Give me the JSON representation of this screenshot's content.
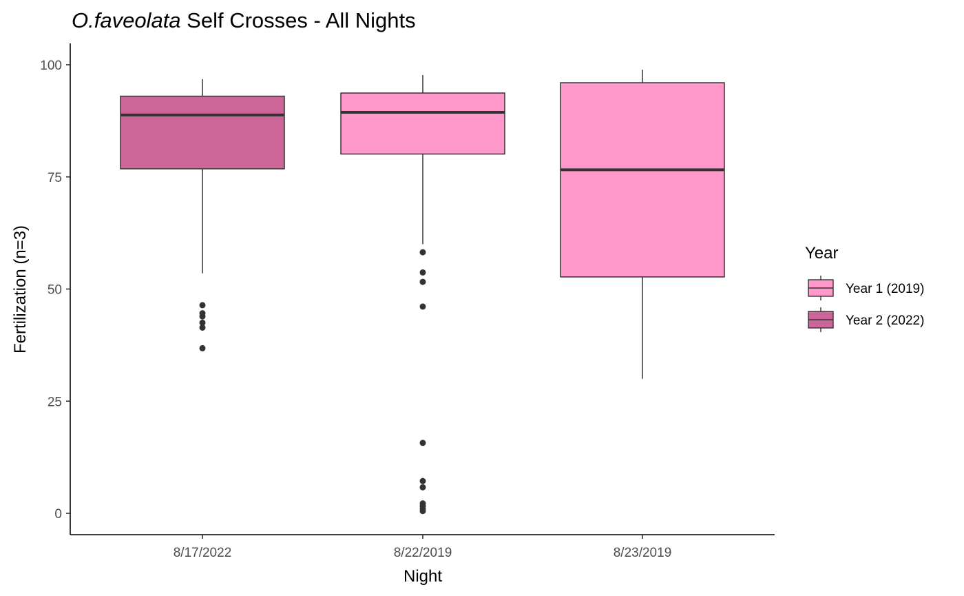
{
  "chart_data": {
    "type": "boxplot",
    "title_italic": "O.faveolata",
    "title_rest": " Self Crosses - All Nights",
    "xlabel": "Night",
    "ylabel": "Fertilization (n=3)",
    "ylim": [
      -5,
      105
    ],
    "yticks": [
      0,
      25,
      50,
      75,
      100
    ],
    "categories": [
      "8/17/2022",
      "8/22/2019",
      "8/23/2019"
    ],
    "grid": false,
    "legend": {
      "title": "Year",
      "position": "right",
      "entries": [
        {
          "label": "Year 1 (2019)",
          "color": "#ff99cc"
        },
        {
          "label": "Year 2 (2022)",
          "color": "#cc6699"
        }
      ]
    },
    "boxes": [
      {
        "category": "8/17/2022",
        "group": "Year 2 (2022)",
        "color": "#cc6699",
        "whisker_low": 53.5,
        "q1": 76.8,
        "median": 88.8,
        "q3": 93.0,
        "whisker_high": 96.8,
        "outliers": [
          46.4,
          44.6,
          43.9,
          42.5,
          41.4,
          36.8
        ]
      },
      {
        "category": "8/22/2019",
        "group": "Year 1 (2019)",
        "color": "#ff99cc",
        "whisker_low": 60.0,
        "q1": 80.1,
        "median": 89.4,
        "q3": 93.7,
        "whisker_high": 97.7,
        "outliers": [
          58.2,
          53.7,
          51.6,
          46.1,
          15.7,
          7.2,
          5.8,
          2.2,
          1.6,
          1.0,
          0.5
        ]
      },
      {
        "category": "8/23/2019",
        "group": "Year 1 (2019)",
        "color": "#ff99cc",
        "whisker_low": 30.0,
        "q1": 52.7,
        "median": 76.6,
        "q3": 96.0,
        "whisker_high": 98.9,
        "outliers": []
      }
    ]
  }
}
